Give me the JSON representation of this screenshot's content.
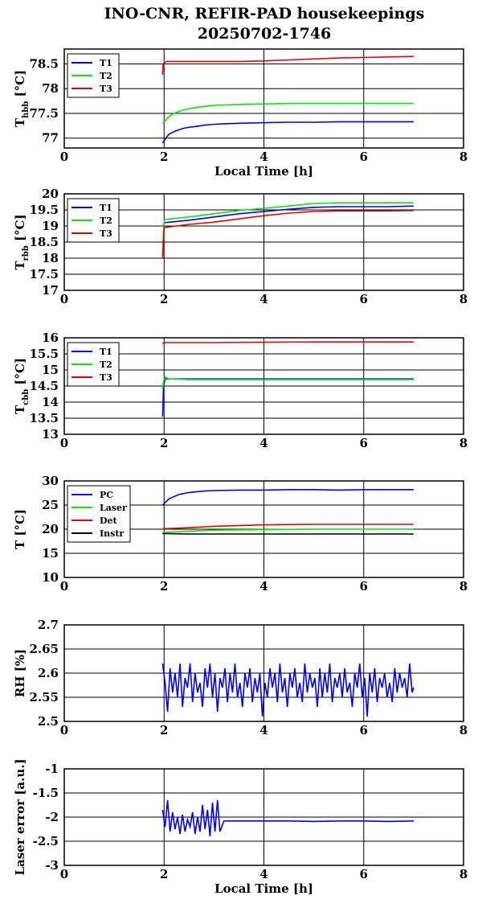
{
  "figure": {
    "title_line1": "INO-CNR, REFIR-PAD housekeepings",
    "title_line2": "20250702-1746"
  },
  "chart_data": [
    {
      "type": "line",
      "ylabel_main": "T",
      "ylabel_sub": "hbb",
      "ylabel_unit": " [°C]",
      "xlabel": "Local Time [h]",
      "xlim": [
        0,
        8
      ],
      "ylim": [
        76.8,
        78.8
      ],
      "xticks": [
        0,
        2,
        4,
        6,
        8
      ],
      "yticks": [
        77,
        77.5,
        78,
        78.5
      ],
      "ytick_labels": [
        "77",
        "77.5",
        "78",
        "78.5"
      ],
      "grid": true,
      "legend_position": "top-left",
      "series": [
        {
          "name": "T1",
          "color": "#0000ff",
          "x": [
            1.97,
            2.05,
            2.1,
            2.2,
            2.3,
            2.4,
            2.5,
            2.6,
            2.8,
            3.0,
            3.2,
            3.5,
            4.0,
            4.5,
            5.0,
            5.5,
            6.0,
            6.5,
            7.0
          ],
          "y": [
            76.9,
            77.02,
            77.08,
            77.13,
            77.17,
            77.2,
            77.22,
            77.23,
            77.26,
            77.28,
            77.29,
            77.3,
            77.31,
            77.32,
            77.32,
            77.33,
            77.33,
            77.33,
            77.33
          ]
        },
        {
          "name": "T2",
          "color": "#00ee00",
          "x": [
            1.97,
            2.05,
            2.1,
            2.2,
            2.3,
            2.4,
            2.5,
            2.6,
            2.8,
            3.0,
            3.2,
            3.5,
            4.0,
            4.5,
            5.0,
            5.5,
            6.0,
            6.5,
            7.0
          ],
          "y": [
            77.3,
            77.38,
            77.44,
            77.5,
            77.54,
            77.57,
            77.59,
            77.61,
            77.64,
            77.66,
            77.67,
            77.68,
            77.69,
            77.7,
            77.7,
            77.7,
            77.7,
            77.7,
            77.7
          ]
        },
        {
          "name": "T3",
          "color": "#ee0000",
          "x": [
            1.97,
            1.98,
            2.05,
            2.2,
            2.5,
            3.0,
            3.5,
            4.0,
            4.5,
            5.0,
            5.5,
            6.0,
            6.5,
            7.0
          ],
          "y": [
            78.28,
            78.5,
            78.55,
            78.55,
            78.55,
            78.55,
            78.55,
            78.56,
            78.58,
            78.6,
            78.62,
            78.63,
            78.64,
            78.65
          ]
        }
      ]
    },
    {
      "type": "line",
      "ylabel_main": "T",
      "ylabel_sub": "rbb",
      "ylabel_unit": " [°C]",
      "xlabel": "",
      "xlim": [
        0,
        8
      ],
      "ylim": [
        17,
        20
      ],
      "xticks": [
        0,
        2,
        4,
        6,
        8
      ],
      "yticks": [
        17,
        17.5,
        18,
        18.5,
        19,
        19.5,
        20
      ],
      "ytick_labels": [
        "17",
        "17.5",
        "18",
        "18.5",
        "19",
        "19.5",
        "20"
      ],
      "grid": true,
      "legend_position": "top-left",
      "series": [
        {
          "name": "T1",
          "color": "#0000ff",
          "x": [
            1.97,
            2.0,
            2.5,
            3.0,
            3.5,
            4.0,
            4.5,
            5.0,
            5.5,
            6.0,
            6.5,
            7.0
          ],
          "y": [
            18.1,
            19.1,
            19.18,
            19.28,
            19.38,
            19.45,
            19.52,
            19.58,
            19.6,
            19.6,
            19.6,
            19.62
          ]
        },
        {
          "name": "T2",
          "color": "#00ee00",
          "x": [
            1.97,
            2.0,
            2.5,
            3.0,
            3.5,
            4.0,
            4.5,
            5.0,
            5.5,
            6.0,
            6.5,
            7.0
          ],
          "y": [
            18.2,
            19.2,
            19.28,
            19.38,
            19.48,
            19.55,
            19.62,
            19.7,
            19.72,
            19.72,
            19.72,
            19.72
          ]
        },
        {
          "name": "T3",
          "color": "#ee0000",
          "x": [
            1.97,
            2.0,
            2.5,
            3.0,
            3.5,
            4.0,
            4.5,
            5.0,
            5.5,
            6.0,
            6.5,
            7.0
          ],
          "y": [
            18.0,
            18.95,
            19.05,
            19.12,
            19.22,
            19.32,
            19.4,
            19.45,
            19.47,
            19.47,
            19.47,
            19.48
          ]
        }
      ]
    },
    {
      "type": "line",
      "ylabel_main": "T",
      "ylabel_sub": "cbb",
      "ylabel_unit": " [°C]",
      "xlabel": "",
      "xlim": [
        0,
        8
      ],
      "ylim": [
        13,
        16
      ],
      "xticks": [
        0,
        2,
        4,
        6,
        8
      ],
      "yticks": [
        13,
        13.5,
        14,
        14.5,
        15,
        15.5,
        16
      ],
      "ytick_labels": [
        "13",
        "13.5",
        "14",
        "14.5",
        "15",
        "15.5",
        "16"
      ],
      "grid": true,
      "legend_position": "top-left",
      "series": [
        {
          "name": "T1",
          "color": "#0000ff",
          "x": [
            1.97,
            1.99,
            2.02,
            2.1,
            2.5,
            3.0,
            4.0,
            5.0,
            6.0,
            7.0
          ],
          "y": [
            13.55,
            14.5,
            14.72,
            14.72,
            14.72,
            14.72,
            14.72,
            14.72,
            14.72,
            14.72
          ]
        },
        {
          "name": "T2",
          "color": "#00ee00",
          "x": [
            1.97,
            1.99,
            2.02,
            2.1,
            2.5,
            3.0,
            4.0,
            5.0,
            6.0,
            7.0
          ],
          "y": [
            14.4,
            14.65,
            14.78,
            14.72,
            14.7,
            14.7,
            14.7,
            14.7,
            14.7,
            14.7
          ]
        },
        {
          "name": "T3",
          "color": "#ee0000",
          "x": [
            1.97,
            2.0,
            2.5,
            3.0,
            4.0,
            5.0,
            6.0,
            7.0
          ],
          "y": [
            15.82,
            15.85,
            15.85,
            15.85,
            15.86,
            15.87,
            15.87,
            15.87
          ]
        }
      ]
    },
    {
      "type": "line",
      "ylabel_main": "T [°C]",
      "ylabel_sub": "",
      "ylabel_unit": "",
      "xlabel": "",
      "xlim": [
        0,
        8
      ],
      "ylim": [
        10,
        30
      ],
      "xticks": [
        0,
        2,
        4,
        6,
        8
      ],
      "yticks": [
        10,
        15,
        20,
        25,
        30
      ],
      "ytick_labels": [
        "10",
        "15",
        "20",
        "25",
        "30"
      ],
      "grid": true,
      "legend_position": "top-left",
      "series": [
        {
          "name": "PC",
          "color": "#0000ff",
          "x": [
            1.97,
            2.1,
            2.3,
            2.5,
            2.8,
            3.0,
            3.5,
            4.0,
            4.5,
            5.0,
            5.5,
            6.0,
            6.5,
            7.0
          ],
          "y": [
            25.0,
            26.3,
            27.2,
            27.6,
            27.9,
            28.0,
            28.1,
            28.1,
            28.2,
            28.2,
            28.1,
            28.2,
            28.2,
            28.2
          ]
        },
        {
          "name": "Laser",
          "color": "#00ee00",
          "x": [
            1.97,
            2.5,
            3.0,
            4.0,
            5.0,
            6.0,
            7.0
          ],
          "y": [
            19.3,
            19.6,
            19.8,
            19.9,
            20.0,
            20.0,
            20.0
          ]
        },
        {
          "name": "Det",
          "color": "#ee0000",
          "x": [
            1.97,
            2.5,
            3.0,
            4.0,
            5.0,
            6.0,
            7.0
          ],
          "y": [
            20.1,
            20.3,
            20.6,
            20.9,
            21.0,
            21.0,
            21.0
          ]
        },
        {
          "name": "Instr",
          "color": "#000000",
          "x": [
            1.97,
            2.5,
            3.0,
            4.0,
            5.0,
            6.0,
            7.0
          ],
          "y": [
            19.1,
            19.0,
            19.0,
            19.0,
            19.0,
            19.0,
            19.0
          ]
        }
      ]
    },
    {
      "type": "line",
      "ylabel_main": "RH [%]",
      "ylabel_sub": "",
      "ylabel_unit": "",
      "xlabel": "",
      "xlim": [
        0,
        8
      ],
      "ylim": [
        2.5,
        2.7
      ],
      "xticks": [
        0,
        2,
        4,
        6,
        8
      ],
      "yticks": [
        2.5,
        2.55,
        2.6,
        2.65,
        2.7
      ],
      "ytick_labels": [
        "2.5",
        "2.55",
        "2.6",
        "2.65",
        "2.7"
      ],
      "grid": true,
      "legend_position": "none",
      "series": [
        {
          "color": "#0000ff",
          "x": [
            1.97,
            2.02,
            2.07,
            2.12,
            2.17,
            2.22,
            2.27,
            2.32,
            2.37,
            2.42,
            2.47,
            2.52,
            2.57,
            2.62,
            2.67,
            2.72,
            2.77,
            2.82,
            2.87,
            2.92,
            2.97,
            3.02,
            3.07,
            3.12,
            3.17,
            3.22,
            3.27,
            3.32,
            3.37,
            3.42,
            3.47,
            3.52,
            3.57,
            3.62,
            3.67,
            3.72,
            3.77,
            3.82,
            3.87,
            3.92,
            3.97,
            4.02,
            4.07,
            4.12,
            4.17,
            4.22,
            4.27,
            4.32,
            4.37,
            4.42,
            4.47,
            4.52,
            4.57,
            4.62,
            4.67,
            4.72,
            4.77,
            4.82,
            4.87,
            4.92,
            4.97,
            5.02,
            5.07,
            5.12,
            5.17,
            5.22,
            5.27,
            5.32,
            5.37,
            5.42,
            5.47,
            5.52,
            5.57,
            5.62,
            5.67,
            5.72,
            5.77,
            5.82,
            5.87,
            5.92,
            5.97,
            6.02,
            6.07,
            6.12,
            6.17,
            6.22,
            6.27,
            6.32,
            6.37,
            6.42,
            6.47,
            6.52,
            6.57,
            6.62,
            6.67,
            6.72,
            6.77,
            6.82,
            6.87,
            6.92,
            6.97,
            7.0
          ],
          "y": [
            2.62,
            2.58,
            2.52,
            2.61,
            2.56,
            2.6,
            2.55,
            2.62,
            2.53,
            2.59,
            2.57,
            2.62,
            2.54,
            2.6,
            2.56,
            2.58,
            2.53,
            2.61,
            2.57,
            2.62,
            2.55,
            2.6,
            2.52,
            2.59,
            2.57,
            2.61,
            2.54,
            2.6,
            2.56,
            2.62,
            2.55,
            2.58,
            2.53,
            2.6,
            2.57,
            2.61,
            2.54,
            2.59,
            2.56,
            2.6,
            2.51,
            2.58,
            2.55,
            2.61,
            2.57,
            2.6,
            2.54,
            2.62,
            2.56,
            2.59,
            2.53,
            2.6,
            2.57,
            2.61,
            2.55,
            2.58,
            2.54,
            2.62,
            2.56,
            2.6,
            2.57,
            2.59,
            2.53,
            2.61,
            2.55,
            2.6,
            2.56,
            2.62,
            2.54,
            2.59,
            2.57,
            2.6,
            2.55,
            2.61,
            2.56,
            2.58,
            2.53,
            2.6,
            2.57,
            2.62,
            2.55,
            2.59,
            2.51,
            2.6,
            2.56,
            2.61,
            2.54,
            2.59,
            2.57,
            2.6,
            2.55,
            2.58,
            2.54,
            2.61,
            2.56,
            2.6,
            2.57,
            2.59,
            2.55,
            2.62,
            2.56,
            2.57
          ]
        }
      ]
    },
    {
      "type": "line",
      "ylabel_main": "Laser error [a.u.]",
      "ylabel_sub": "",
      "ylabel_unit": "",
      "xlabel": "Local Time [h]",
      "xlim": [
        0,
        8
      ],
      "ylim": [
        -3,
        -1
      ],
      "xticks": [
        0,
        2,
        4,
        6,
        8
      ],
      "yticks": [
        -3,
        -2.5,
        -2,
        -1.5,
        -1
      ],
      "ytick_labels": [
        "-3",
        "-2.5",
        "-2",
        "-1.5",
        "-1"
      ],
      "grid": true,
      "legend_position": "none",
      "series": [
        {
          "color": "#0000ff",
          "x": [
            1.97,
            2.02,
            2.07,
            2.12,
            2.17,
            2.22,
            2.27,
            2.32,
            2.37,
            2.42,
            2.47,
            2.52,
            2.57,
            2.62,
            2.67,
            2.72,
            2.77,
            2.82,
            2.87,
            2.92,
            2.97,
            3.02,
            3.07,
            3.12,
            3.2,
            3.5,
            4.0,
            4.5,
            5.0,
            5.5,
            6.0,
            6.5,
            7.0
          ],
          "y": [
            -1.85,
            -2.2,
            -1.65,
            -2.3,
            -1.9,
            -2.25,
            -2.0,
            -2.35,
            -1.95,
            -2.3,
            -2.05,
            -2.2,
            -1.9,
            -2.35,
            -2.0,
            -2.3,
            -1.75,
            -2.25,
            -1.85,
            -2.4,
            -1.7,
            -2.3,
            -1.65,
            -2.3,
            -2.08,
            -2.08,
            -2.08,
            -2.08,
            -2.09,
            -2.08,
            -2.08,
            -2.09,
            -2.08
          ]
        }
      ]
    }
  ]
}
